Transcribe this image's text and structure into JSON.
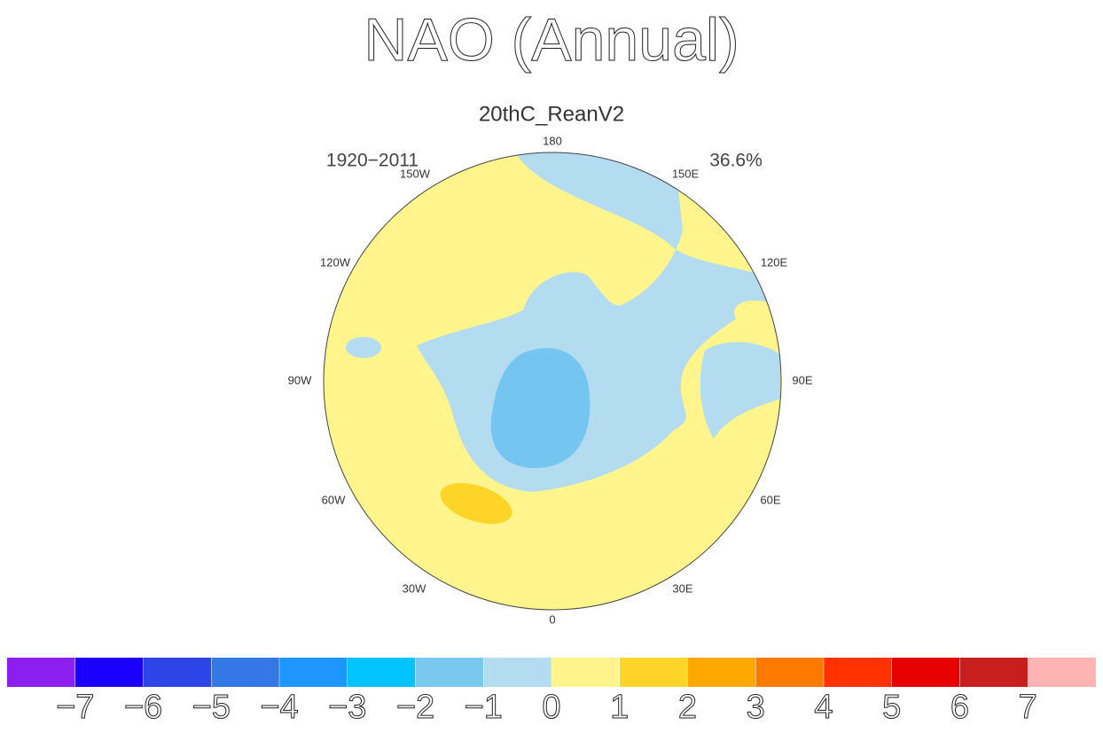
{
  "header": {
    "title": "NAO (Annual)",
    "subtitle": "20thC_ReanV2",
    "period": "1920−2011",
    "variance": "36.6%"
  },
  "map": {
    "longitude_labels": [
      "180",
      "150W",
      "150E",
      "120W",
      "120E",
      "90W",
      "90E",
      "60W",
      "60E",
      "30W",
      "30E",
      "0"
    ]
  },
  "colorbar": {
    "colors": [
      "#8c1ff0",
      "#1a00ff",
      "#2d44e6",
      "#3478e6",
      "#1e96ff",
      "#00c3ff",
      "#78c8f0",
      "#b4dcf0",
      "#fff58c",
      "#ffd428",
      "#ffa800",
      "#ff7800",
      "#ff3200",
      "#e60000",
      "#c81e1e",
      "#ffb4b4"
    ],
    "ticks": [
      {
        "value": -7,
        "label": "−7"
      },
      {
        "value": -6,
        "label": "−6"
      },
      {
        "value": -5,
        "label": "−5"
      },
      {
        "value": -4,
        "label": "−4"
      },
      {
        "value": -3,
        "label": "−3"
      },
      {
        "value": -2,
        "label": "−2"
      },
      {
        "value": -1,
        "label": "−1"
      },
      0,
      1,
      2,
      3,
      4,
      5,
      6,
      7
    ]
  }
}
